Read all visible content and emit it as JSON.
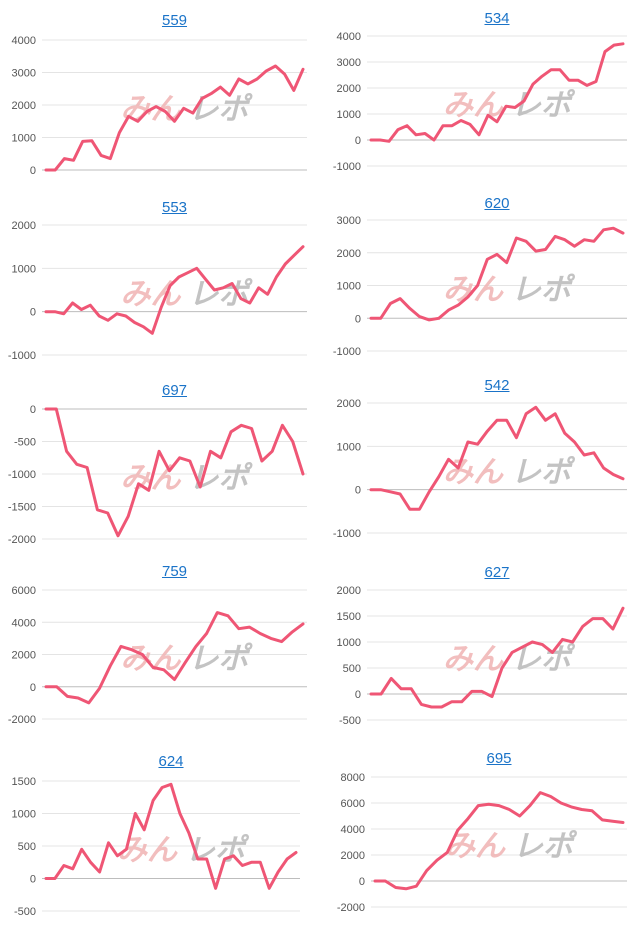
{
  "colors": {
    "line": "#ef5675",
    "grid": "#e4e4e4",
    "link": "#1a73c8",
    "watermark_red": "#f1b7b7",
    "watermark_gray": "#bdbdbd"
  },
  "watermark": {
    "left": "みん",
    "right": "レポ"
  },
  "chart_data": [
    {
      "type": "line",
      "title": "559",
      "ylim": [
        0,
        4000
      ],
      "yticks": [
        0,
        1000,
        2000,
        3000,
        4000
      ],
      "tick_labels": [
        "0",
        "1000",
        "2000",
        "3000",
        "4000"
      ],
      "values": [
        0,
        0,
        350,
        300,
        880,
        900,
        450,
        350,
        1150,
        1650,
        1500,
        1800,
        1950,
        1800,
        1500,
        1900,
        1750,
        2200,
        2350,
        2550,
        2300,
        2800,
        2650,
        2800,
        3050,
        3200,
        2950,
        2450,
        3100
      ]
    },
    {
      "type": "line",
      "title": "534",
      "ylim": [
        -1000,
        4000
      ],
      "yticks": [
        -1000,
        0,
        1000,
        2000,
        3000,
        4000
      ],
      "tick_labels": [
        "-1000",
        "0",
        "1000",
        "2000",
        "3000",
        "4000"
      ],
      "values": [
        0,
        0,
        -50,
        400,
        550,
        200,
        250,
        0,
        550,
        550,
        750,
        600,
        200,
        950,
        700,
        1300,
        1250,
        1500,
        2150,
        2450,
        2700,
        2700,
        2300,
        2300,
        2100,
        2250,
        3400,
        3650,
        3700
      ]
    },
    {
      "type": "line",
      "title": "553",
      "ylim": [
        -1000,
        2000
      ],
      "yticks": [
        -1000,
        0,
        1000,
        2000
      ],
      "tick_labels": [
        "-1000",
        "0",
        "1000",
        "2000"
      ],
      "values": [
        0,
        0,
        -50,
        200,
        50,
        150,
        -100,
        -200,
        -50,
        -100,
        -250,
        -350,
        -500,
        100,
        600,
        800,
        900,
        1000,
        750,
        500,
        550,
        650,
        300,
        200,
        550,
        400,
        800,
        1100,
        1300,
        1500
      ]
    },
    {
      "type": "line",
      "title": "620",
      "ylim": [
        -1000,
        3000
      ],
      "yticks": [
        -1000,
        0,
        1000,
        2000,
        3000
      ],
      "tick_labels": [
        "-1000",
        "0",
        "1000",
        "2000",
        "3000"
      ],
      "values": [
        0,
        0,
        450,
        600,
        300,
        50,
        -50,
        0,
        250,
        400,
        650,
        1000,
        1800,
        1950,
        1700,
        2450,
        2350,
        2050,
        2100,
        2500,
        2400,
        2200,
        2400,
        2350,
        2700,
        2750,
        2600
      ]
    },
    {
      "type": "line",
      "title": "697",
      "ylim": [
        -2000,
        0
      ],
      "yticks": [
        -2000,
        -1500,
        -1000,
        -500,
        0
      ],
      "tick_labels": [
        "-2000",
        "-1500",
        "-1000",
        "-500",
        "0"
      ],
      "values": [
        0,
        0,
        -650,
        -850,
        -900,
        -1550,
        -1600,
        -1950,
        -1650,
        -1150,
        -1250,
        -650,
        -950,
        -750,
        -800,
        -1200,
        -650,
        -750,
        -350,
        -250,
        -300,
        -800,
        -650,
        -250,
        -500,
        -1000
      ]
    },
    {
      "type": "line",
      "title": "542",
      "ylim": [
        -1000,
        2000
      ],
      "yticks": [
        -1000,
        0,
        1000,
        2000
      ],
      "tick_labels": [
        "-1000",
        "0",
        "1000",
        "2000"
      ],
      "values": [
        0,
        0,
        -50,
        -100,
        -450,
        -450,
        -50,
        300,
        700,
        500,
        1100,
        1050,
        1350,
        1600,
        1600,
        1200,
        1750,
        1900,
        1600,
        1750,
        1300,
        1100,
        800,
        850,
        500,
        350,
        250
      ]
    },
    {
      "type": "line",
      "title": "759",
      "ylim": [
        -2000,
        6000
      ],
      "yticks": [
        -2000,
        0,
        2000,
        4000,
        6000
      ],
      "tick_labels": [
        "-2000",
        "0",
        "2000",
        "4000",
        "6000"
      ],
      "values": [
        0,
        0,
        -600,
        -700,
        -1000,
        -100,
        1300,
        2500,
        2300,
        2000,
        1200,
        1050,
        450,
        1500,
        2500,
        3300,
        4600,
        4400,
        3600,
        3700,
        3300,
        3000,
        2800,
        3400,
        3900
      ]
    },
    {
      "type": "line",
      "title": "627",
      "ylim": [
        -500,
        2000
      ],
      "yticks": [
        -500,
        0,
        500,
        1000,
        1500,
        2000
      ],
      "tick_labels": [
        "-500",
        "0",
        "500",
        "1000",
        "1500",
        "2000"
      ],
      "values": [
        0,
        0,
        300,
        100,
        100,
        -200,
        -250,
        -250,
        -150,
        -150,
        50,
        50,
        -50,
        500,
        800,
        900,
        1000,
        950,
        800,
        1050,
        1000,
        1300,
        1450,
        1450,
        1250,
        1650
      ]
    },
    {
      "type": "line",
      "title": "624",
      "ylim": [
        -500,
        1500
      ],
      "yticks": [
        -500,
        0,
        500,
        1000,
        1500
      ],
      "tick_labels": [
        "-500",
        "0",
        "500",
        "1000",
        "1500"
      ],
      "values": [
        0,
        0,
        200,
        150,
        450,
        250,
        100,
        550,
        350,
        450,
        1000,
        750,
        1200,
        1400,
        1450,
        1000,
        700,
        300,
        300,
        -150,
        300,
        350,
        200,
        250,
        250,
        -150,
        100,
        300,
        400
      ]
    },
    {
      "type": "line",
      "title": "695",
      "ylim": [
        -2000,
        8000
      ],
      "yticks": [
        -2000,
        0,
        2000,
        4000,
        6000,
        8000
      ],
      "tick_labels": [
        "-2000",
        "0",
        "2000",
        "4000",
        "6000",
        "8000"
      ],
      "values": [
        0,
        0,
        -500,
        -600,
        -400,
        800,
        1600,
        2200,
        3900,
        4800,
        5800,
        5900,
        5800,
        5500,
        5000,
        5800,
        6800,
        6500,
        6000,
        5700,
        5500,
        5400,
        4700,
        4600,
        4500
      ]
    }
  ]
}
